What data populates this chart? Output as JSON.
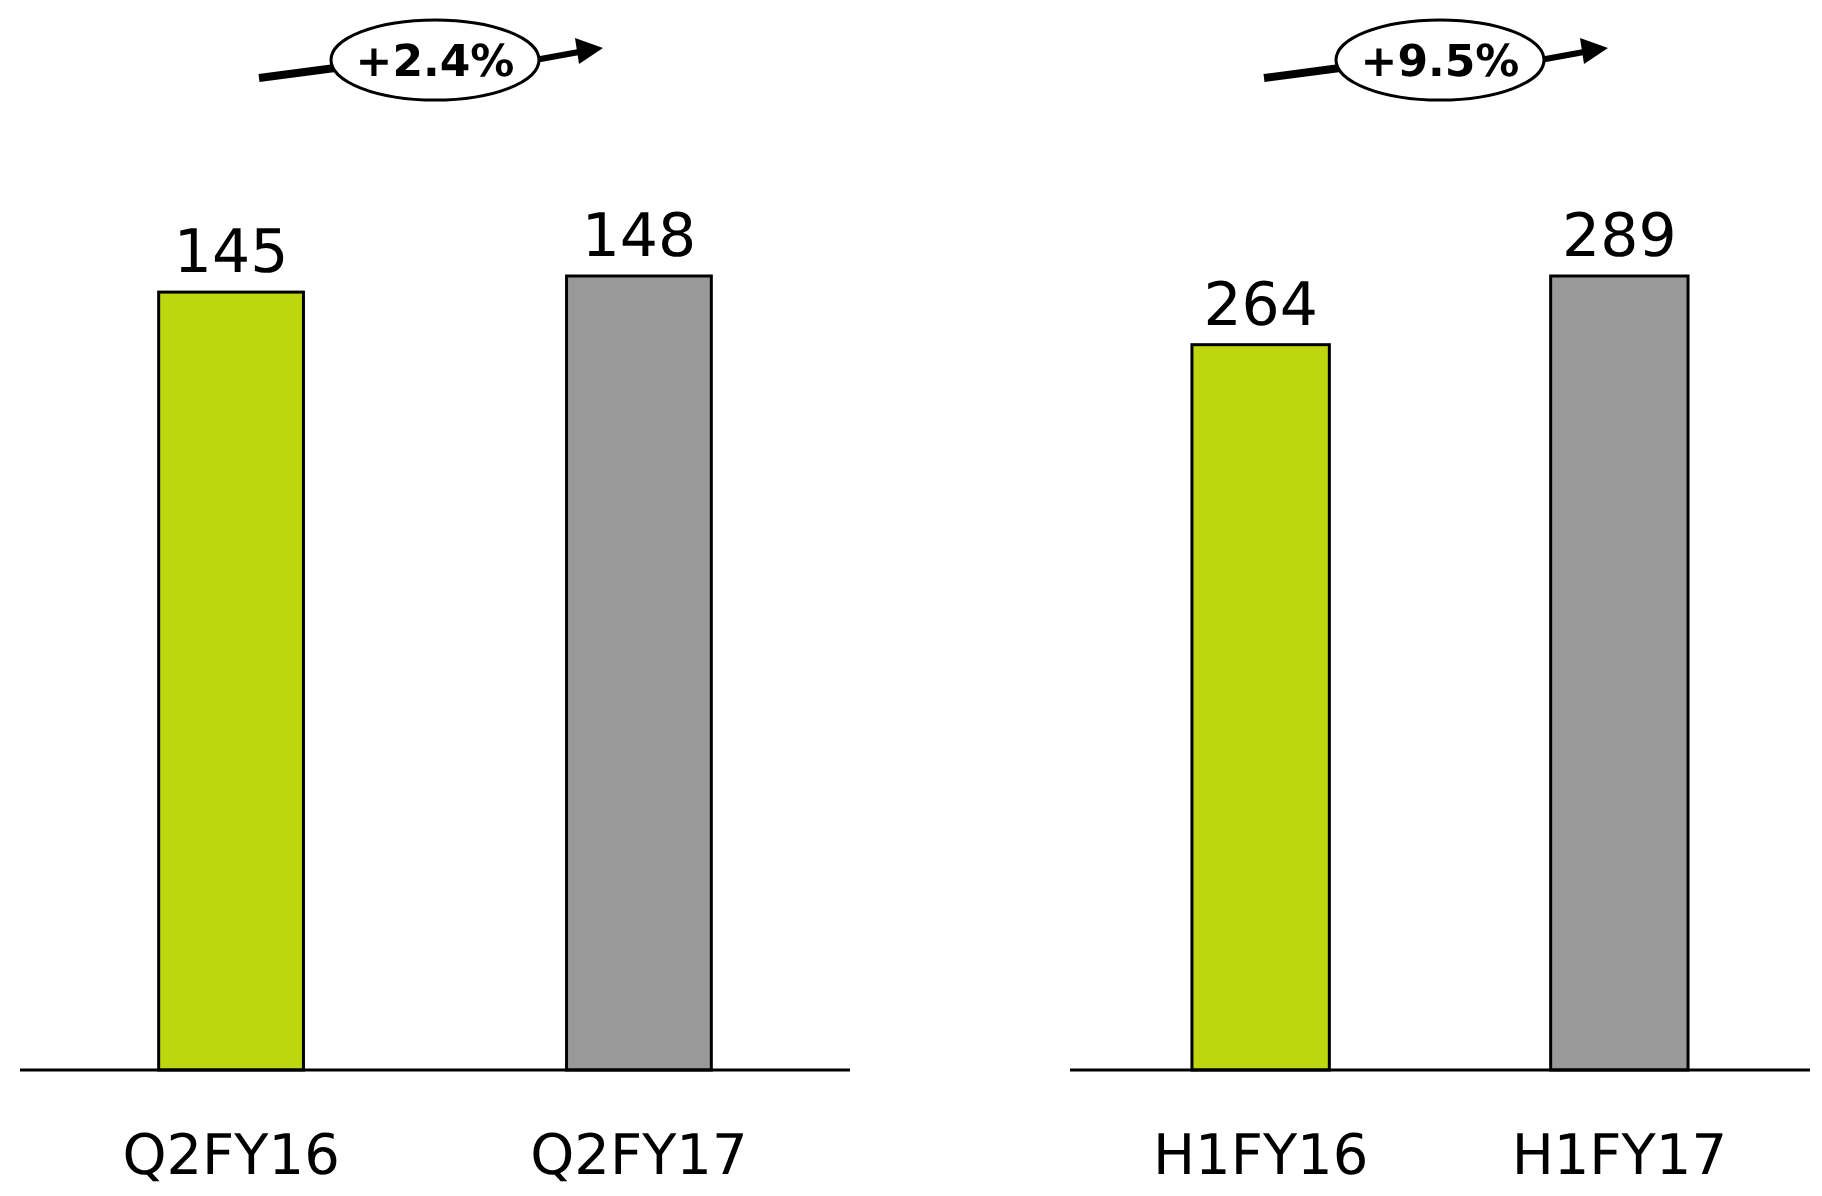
{
  "chart_data": [
    {
      "type": "bar",
      "categories": [
        "Q2FY16",
        "Q2FY17"
      ],
      "values": [
        145,
        148
      ],
      "colors": [
        "#bed60e",
        "#999999"
      ],
      "data_labels": true,
      "annotations": [
        "+2.4%"
      ]
    },
    {
      "type": "bar",
      "categories": [
        "H1FY16",
        "H1FY17"
      ],
      "values": [
        264,
        289
      ],
      "colors": [
        "#bed60e",
        "#999999"
      ],
      "data_labels": true,
      "annotations": [
        "+9.5%"
      ]
    }
  ]
}
